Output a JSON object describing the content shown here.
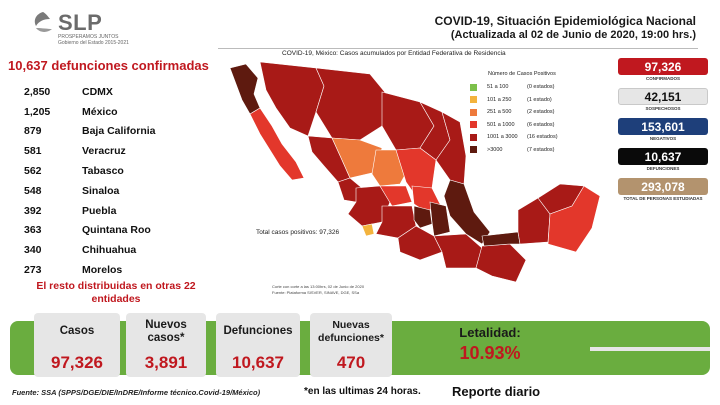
{
  "logo": {
    "name": "SLP",
    "tagline": "PROSPERAMOS JUNTOS",
    "subline": "Gobierno del Estado 2015-2021"
  },
  "header": {
    "title": "COVID-19, Situación Epidemiológica Nacional",
    "subtitle": "(Actualizada al 02 de Junio de 2020, 19:00 hrs.)"
  },
  "deaths": {
    "title": "10,637 defunciones confirmadas",
    "states": [
      {
        "value": "2,850",
        "name": "CDMX"
      },
      {
        "value": "1,205",
        "name": "México"
      },
      {
        "value": "879",
        "name": "Baja California"
      },
      {
        "value": "581",
        "name": "Veracruz"
      },
      {
        "value": "562",
        "name": "Tabasco"
      },
      {
        "value": "548",
        "name": "Sinaloa"
      },
      {
        "value": "392",
        "name": "Puebla"
      },
      {
        "value": "363",
        "name": "Quintana Roo"
      },
      {
        "value": "340",
        "name": "Chihuahua"
      },
      {
        "value": "273",
        "name": "Morelos"
      }
    ],
    "rest": "El resto distribuidas en otras 22 entidades"
  },
  "map": {
    "title": "COVID-19, México: Casos acumulados por Entidad Federativa de Residencia",
    "total": "Total casos positivos: 97,326",
    "note_1": "Corte con corte a las 13:00hrs, 02 de Junio de 2020",
    "note_2": "Fuente: Plataforma SISVER, SINAVE, DGE, SSa",
    "legend_title": "Número de Casos Positivos",
    "legend": [
      {
        "range": "51 a 100",
        "count": "(0 estados)",
        "color": "#7cc04a"
      },
      {
        "range": "101 a 250",
        "count": "(1 estado)",
        "color": "#f3b33d"
      },
      {
        "range": "251 a 500",
        "count": "(2 estados)",
        "color": "#ee7a3c"
      },
      {
        "range": "501 a 1000",
        "count": "(6 estados)",
        "color": "#e3372b"
      },
      {
        "range": "1001 a 3000",
        "count": "(16 estados)",
        "color": "#a81a17"
      },
      {
        "range": ">3000",
        "count": "(7 estados)",
        "color": "#5e1a0f"
      }
    ]
  },
  "stats": [
    {
      "value": "97,326",
      "label": "CONFIRMADOS",
      "style": "b-conf"
    },
    {
      "value": "42,151",
      "label": "SOSPECHOSOS",
      "style": "b-sosp"
    },
    {
      "value": "153,601",
      "label": "NEGATIVOS",
      "style": "b-neg"
    },
    {
      "value": "10,637",
      "label": "DEFUNCIONES",
      "style": "b-def"
    },
    {
      "value": "293,078",
      "label": "TOTAL DE PERSONAS ESTUDIADAS",
      "style": "b-tot"
    }
  ],
  "banner": {
    "casos_label": "Casos",
    "casos_value": "97,326",
    "nuevos_label": "Nuevos casos*",
    "nuevos_value": "3,891",
    "def_label": "Defunciones",
    "def_value": "10,637",
    "nuevas_def_label": "Nuevas defunciones*",
    "nuevas_def_value": "470",
    "letalidad_label": "Letalidad:",
    "letalidad_value": "10.93%"
  },
  "footer": {
    "source": "Fuente: SSA (SPPS/DGE/DIE/InDRE/Informe técnico.Covid-19/México)",
    "note": "*en las ultimas 24 horas.",
    "report": "Reporte diario"
  },
  "colors": {
    "accent_red": "#c0181f",
    "banner_green": "#6aad3f",
    "dark_maroon": "#5e1a0f",
    "maroon": "#a81a17"
  }
}
